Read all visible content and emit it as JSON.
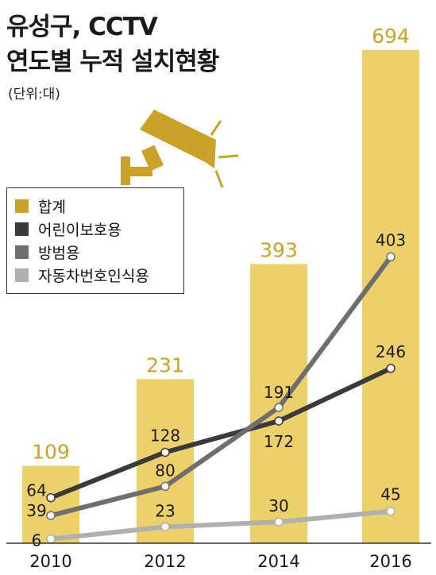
{
  "header": {
    "title_line1": "유성구, CCTV",
    "title_line2": "연도별 누적 설치현황",
    "unit": "(단위:대)"
  },
  "icon": {
    "name": "cctv-camera-icon",
    "color": "#c9a227"
  },
  "legend": {
    "items": [
      {
        "label": "합계",
        "color": "#c9a227"
      },
      {
        "label": "어린이보호용",
        "color": "#3a3a3a"
      },
      {
        "label": "방범용",
        "color": "#6e6e6e"
      },
      {
        "label": "자동차번호인식용",
        "color": "#b0b0b0"
      }
    ]
  },
  "chart_data": {
    "type": "bar",
    "categories": [
      "2010",
      "2012",
      "2014",
      "2016"
    ],
    "bar_series": {
      "name": "합계",
      "values": [
        109,
        231,
        393,
        694
      ],
      "color": "#ecd06a",
      "label_color": "#c9a227"
    },
    "line_series": [
      {
        "name": "어린이보호용",
        "values": [
          64,
          128,
          172,
          246
        ],
        "color": "#3a3a3a"
      },
      {
        "name": "방범용",
        "values": [
          39,
          80,
          191,
          403
        ],
        "color": "#6e6e6e"
      },
      {
        "name": "자동차번호인식용",
        "values": [
          6,
          23,
          30,
          45
        ],
        "color": "#b0b0b0"
      }
    ],
    "ylim": [
      0,
      694
    ],
    "title": "유성구, CCTV 연도별 누적 설치현황",
    "xlabel": "",
    "ylabel": ""
  }
}
